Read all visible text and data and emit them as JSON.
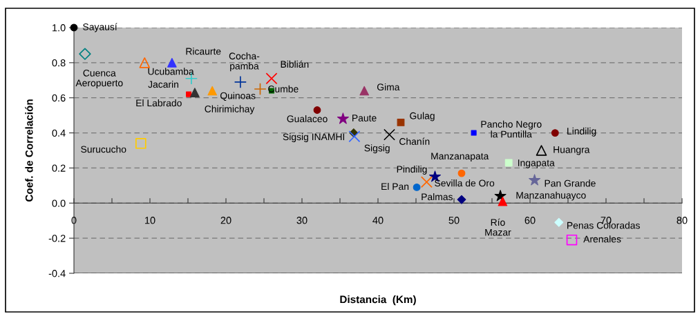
{
  "chart_data": {
    "type": "scatter",
    "xlabel": "Distancia  (Km)",
    "ylabel": "Coef. de Correlación",
    "xlim": [
      0,
      80
    ],
    "ylim": [
      -0.4,
      1.0
    ],
    "xticks": [
      0,
      {
        "value": 5,
        "label": null
      },
      10,
      {
        "value": 15,
        "label": null
      },
      20,
      {
        "value": 25,
        "label": null
      },
      30,
      {
        "value": 35,
        "label": null
      },
      40,
      {
        "value": 45,
        "label": null
      },
      50,
      {
        "value": 55,
        "label": null
      },
      60,
      {
        "value": 65,
        "label": null
      },
      70,
      {
        "value": 75,
        "label": null
      },
      80
    ],
    "yticks": [
      {
        "value": -0.4,
        "label": "-0.4"
      },
      {
        "value": -0.2,
        "label": "-0.2"
      },
      {
        "value": 0,
        "label": "0.0"
      },
      {
        "value": 0.2,
        "label": "0.2"
      },
      {
        "value": 0.4,
        "label": "0.4"
      },
      {
        "value": 0.6,
        "label": "0.6"
      },
      {
        "value": 0.8,
        "label": "0.8"
      },
      {
        "value": 1.0,
        "label": "1.0"
      }
    ],
    "grid": "y",
    "legend": false,
    "series": [
      {
        "name": "Sayausí",
        "color": "#000000",
        "marker": "circle",
        "x": [
          0
        ],
        "values": [
          1.0
        ]
      },
      {
        "name": "Cuenca\nAeropuerto",
        "color": "#008080",
        "marker": "diamond-open",
        "x": [
          1.45
        ],
        "values": [
          0.85
        ]
      },
      {
        "name": "Ucubamba",
        "color": "#ff6600",
        "marker": "triangle-open",
        "x": [
          9.3
        ],
        "values": [
          0.8
        ]
      },
      {
        "name": "Ricaurte",
        "color": "#3333ff",
        "marker": "triangle",
        "x": [
          12.9
        ],
        "values": [
          0.8
        ]
      },
      {
        "name": "Jacarin",
        "color": "#33cccc",
        "marker": "plus",
        "x": [
          15.45
        ],
        "values": [
          0.71
        ]
      },
      {
        "name": "El Labrado",
        "color": "#ff0000",
        "marker": "square",
        "x": [
          15.1
        ],
        "values": [
          0.62
        ]
      },
      {
        "name": "Chirimichay",
        "color": "#333333",
        "marker": "triangle",
        "x": [
          15.9
        ],
        "values": [
          0.63
        ]
      },
      {
        "name": "Quinoas",
        "color": "#ff9900",
        "marker": "triangle",
        "x": [
          18.2
        ],
        "values": [
          0.64
        ]
      },
      {
        "name": "Cocha-\npamba",
        "color": "#003399",
        "marker": "plus",
        "x": [
          21.9
        ],
        "values": [
          0.69
        ]
      },
      {
        "color": "#cc6600",
        "marker": "plus",
        "x": [
          24.5
        ],
        "values": [
          0.65
        ]
      },
      {
        "name": "Cumbe",
        "color": "#006600",
        "marker": "square",
        "x": [
          26.0
        ],
        "values": [
          0.64
        ]
      },
      {
        "name": "Biblián",
        "color": "#ff0000",
        "marker": "cross",
        "x": [
          26.0
        ],
        "values": [
          0.71
        ]
      },
      {
        "name": "Gualaceo",
        "color": "#800000",
        "marker": "circle",
        "x": [
          32.0
        ],
        "values": [
          0.53
        ]
      },
      {
        "name": "Paute",
        "color": "#800080",
        "marker": "star",
        "x": [
          35.4
        ],
        "values": [
          0.48
        ]
      },
      {
        "name": "Gima",
        "color": "#993366",
        "marker": "triangle",
        "x": [
          38.2
        ],
        "values": [
          0.64
        ]
      },
      {
        "name": "Sigsig INAMHI",
        "color": "#333300",
        "marker": "diamond",
        "x": [
          36.8
        ],
        "values": [
          0.4
        ]
      },
      {
        "name": "Sigsig",
        "color": "#3366ff",
        "marker": "cross",
        "x": [
          36.9
        ],
        "values": [
          0.38
        ]
      },
      {
        "name": "Chanín",
        "color": "#000000",
        "marker": "cross",
        "x": [
          41.5
        ],
        "values": [
          0.39
        ]
      },
      {
        "name": "Gulag",
        "color": "#993300",
        "marker": "square",
        "x": [
          43.0
        ],
        "values": [
          0.46
        ]
      },
      {
        "name": "Pancho Negro\nla Puntilla",
        "color": "#0000ff",
        "marker": "square",
        "x": [
          52.6
        ],
        "values": [
          0.4
        ]
      },
      {
        "name": "Lindilig",
        "color": "#800000",
        "marker": "circle",
        "x": [
          63.3
        ],
        "values": [
          0.4
        ]
      },
      {
        "name": "Huangra",
        "color": "#000000",
        "marker": "triangle-open",
        "x": [
          61.5
        ],
        "values": [
          0.3
        ]
      },
      {
        "name": "Ingapata",
        "color": "#ccffcc",
        "marker": "square",
        "x": [
          57.2
        ],
        "values": [
          0.23
        ]
      },
      {
        "name": "Manzanapata",
        "color": "#ff6600",
        "marker": "circle",
        "x": [
          51.0
        ],
        "values": [
          0.17
        ]
      },
      {
        "name": "Pindilig",
        "color": "#000080",
        "marker": "star",
        "x": [
          47.5
        ],
        "values": [
          0.15
        ]
      },
      {
        "name": "Sevilla de Oro",
        "color": "#ff6600",
        "marker": "cross",
        "x": [
          46.4
        ],
        "values": [
          0.12
        ]
      },
      {
        "name": "El Pan",
        "color": "#0066cc",
        "marker": "circle",
        "x": [
          45.1
        ],
        "values": [
          0.09
        ]
      },
      {
        "name": "Palmas",
        "color": "#000080",
        "marker": "diamond",
        "x": [
          51.0
        ],
        "values": [
          0.02
        ]
      },
      {
        "name": "Pan Grande",
        "color": "#666699",
        "marker": "star",
        "x": [
          60.6
        ],
        "values": [
          0.13
        ]
      },
      {
        "name": "Manzanahuayco",
        "color": "#000000",
        "marker": "star",
        "x": [
          56.1
        ],
        "values": [
          0.04
        ]
      },
      {
        "name": "Río\nMazar",
        "color": "#ff0000",
        "marker": "triangle",
        "x": [
          56.4
        ],
        "values": [
          0.01
        ]
      },
      {
        "name": "Penas Coloradas",
        "color": "#ccffff",
        "marker": "diamond",
        "x": [
          63.8
        ],
        "values": [
          -0.11
        ]
      },
      {
        "name": "Arenales",
        "color": "#ff00ff",
        "marker": "square-open",
        "x": [
          65.5
        ],
        "values": [
          -0.21
        ]
      },
      {
        "name": "Surucucho",
        "color": "#ffcc00",
        "marker": "square-open",
        "x": [
          8.8
        ],
        "values": [
          0.34
        ]
      }
    ]
  }
}
